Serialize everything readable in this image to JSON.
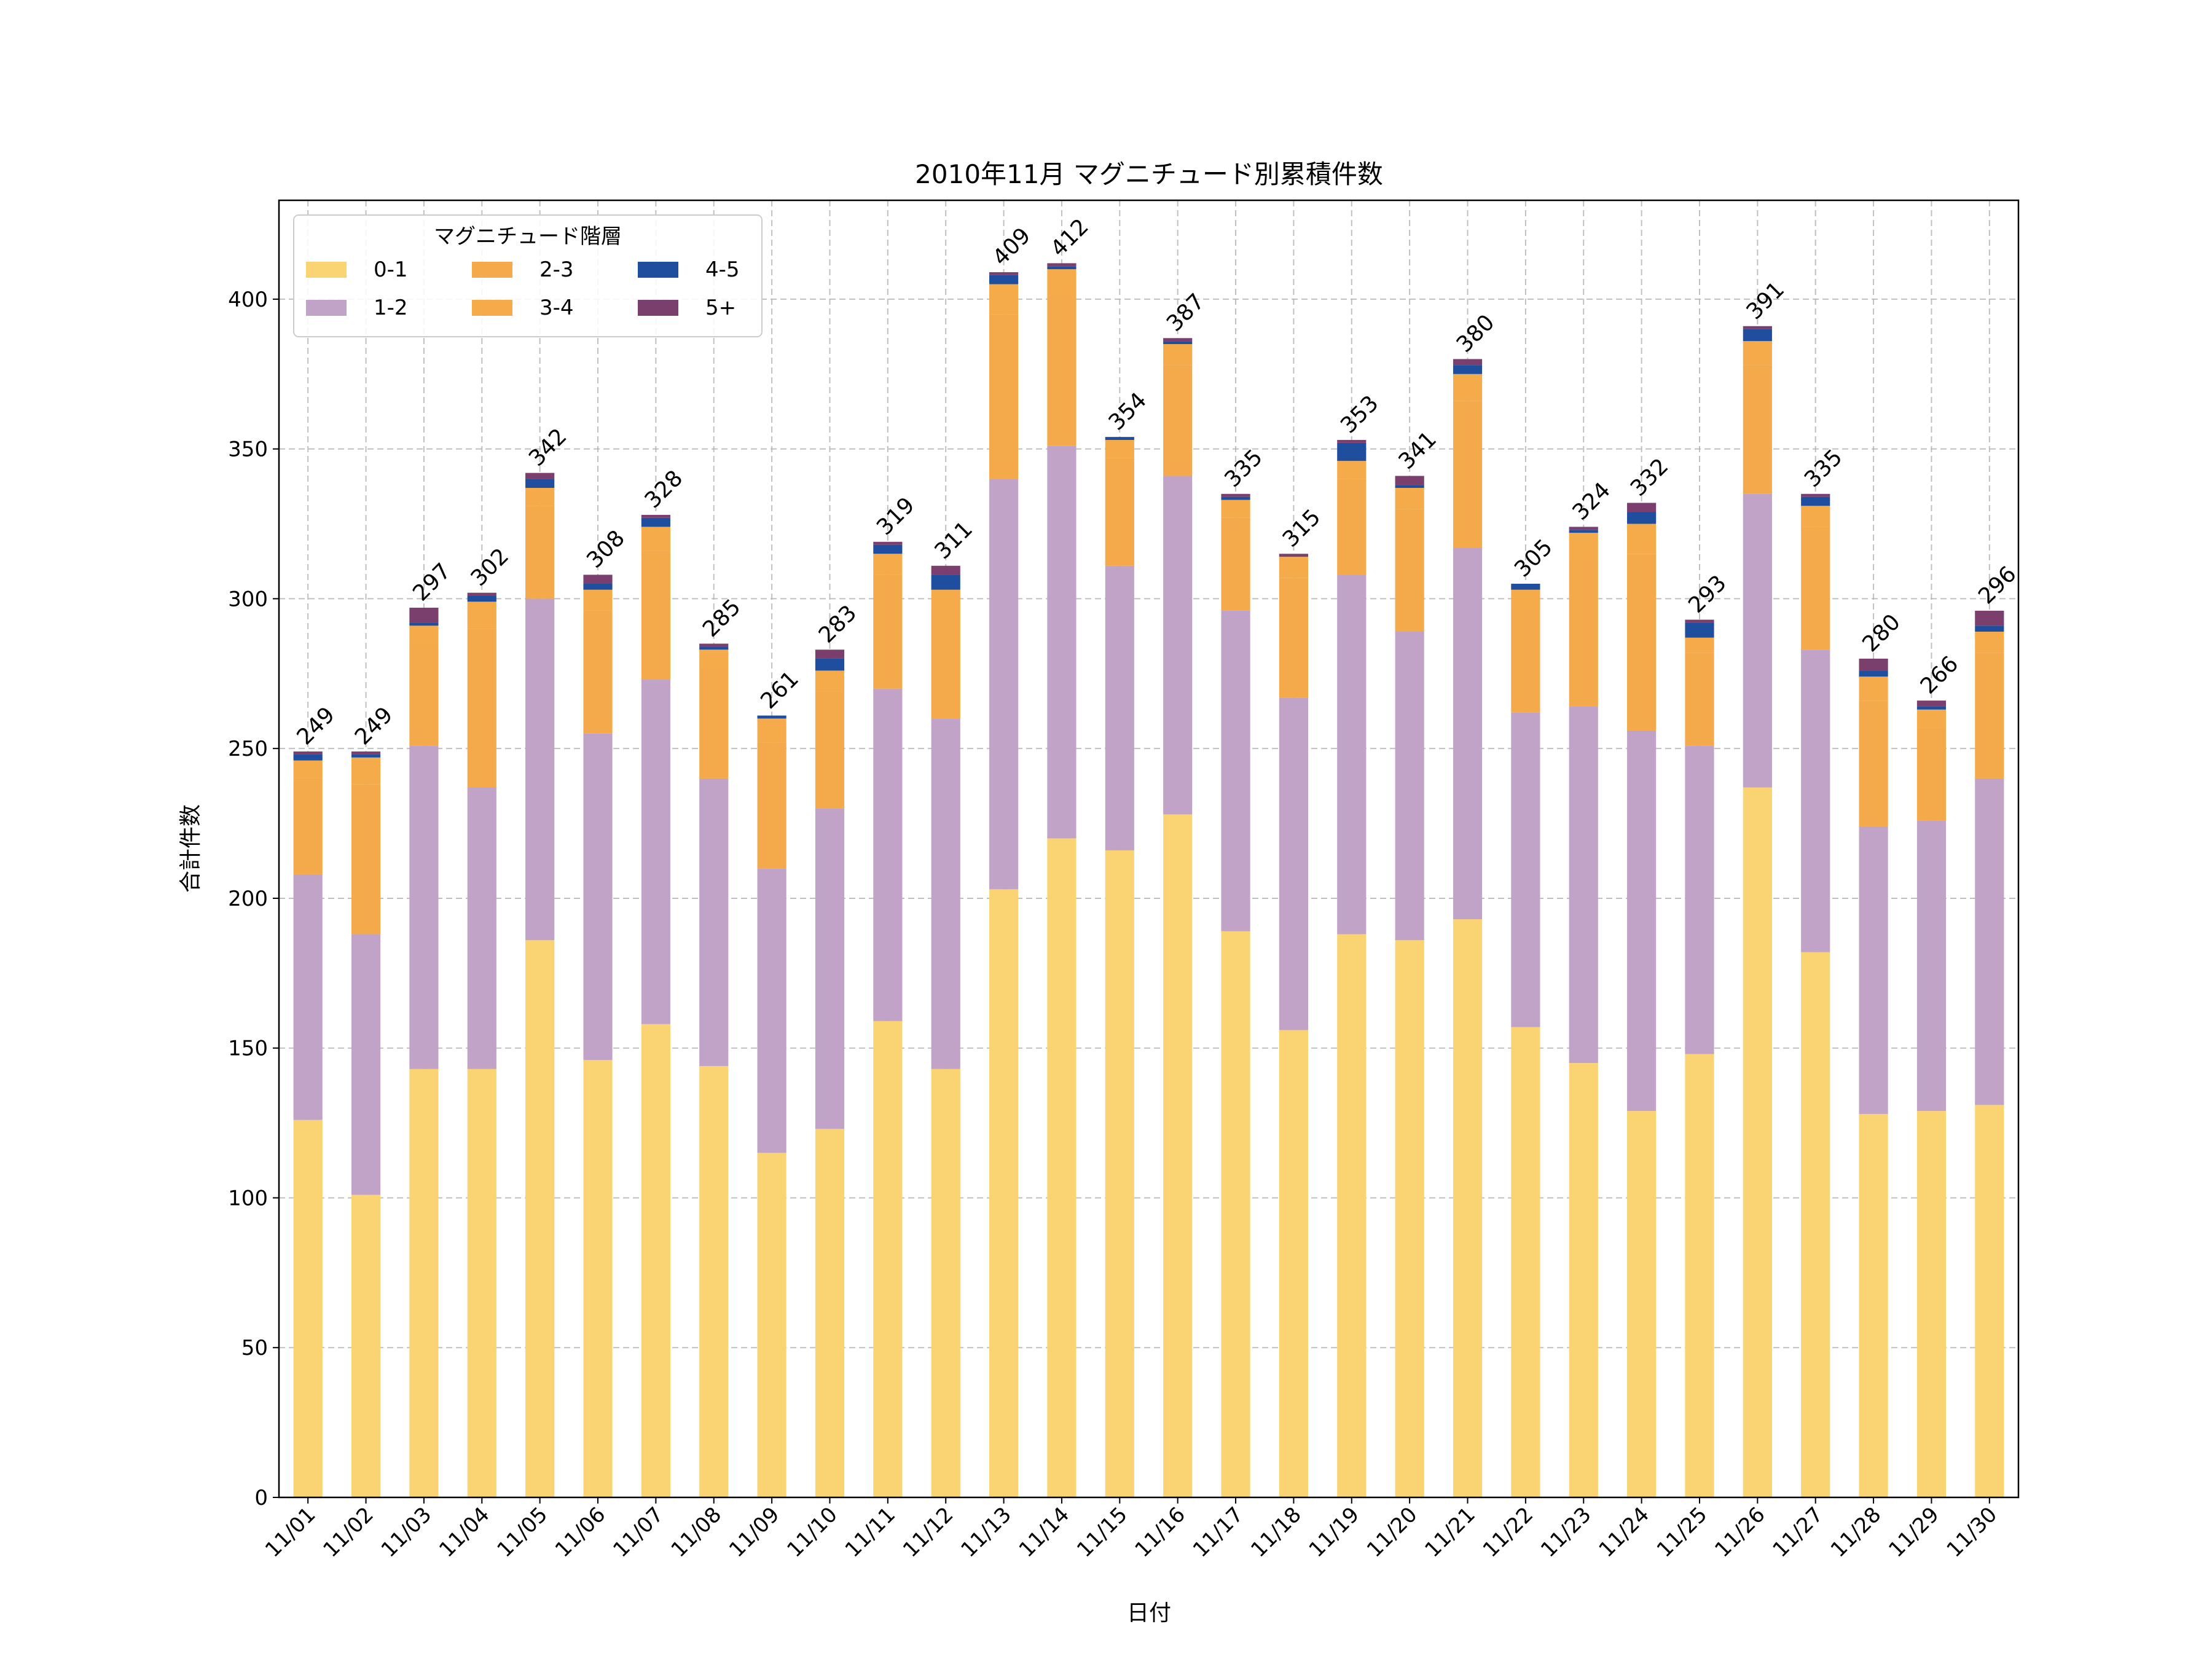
{
  "chart_data": {
    "type": "bar",
    "stacked": true,
    "title": "2010年11月 マグニチュード別累積件数",
    "xlabel": "日付",
    "ylabel": "合計件数",
    "ylim": [
      0,
      433
    ],
    "yticks": [
      0,
      50,
      100,
      150,
      200,
      250,
      300,
      350,
      400
    ],
    "grid": true,
    "legend": {
      "title": "マグニチュード階層",
      "placement": "top-left",
      "columns": 3
    },
    "categories": [
      "11/01",
      "11/02",
      "11/03",
      "11/04",
      "11/05",
      "11/06",
      "11/07",
      "11/08",
      "11/09",
      "11/10",
      "11/11",
      "11/12",
      "11/13",
      "11/14",
      "11/15",
      "11/16",
      "11/17",
      "11/18",
      "11/19",
      "11/20",
      "11/21",
      "11/22",
      "11/23",
      "11/24",
      "11/25",
      "11/26",
      "11/27",
      "11/28",
      "11/29",
      "11/30"
    ],
    "series": [
      {
        "name": "0-1",
        "color": "#fad473",
        "values": [
          126,
          101,
          143,
          143,
          186,
          146,
          158,
          144,
          115,
          123,
          159,
          143,
          203,
          220,
          216,
          228,
          189,
          156,
          188,
          186,
          193,
          157,
          145,
          129,
          148,
          237,
          182,
          128,
          129,
          131
        ]
      },
      {
        "name": "1-2",
        "color": "#c0a3c7",
        "values": [
          82,
          87,
          108,
          94,
          114,
          109,
          115,
          96,
          95,
          107,
          111,
          117,
          137,
          131,
          95,
          113,
          107,
          111,
          120,
          103,
          124,
          105,
          119,
          127,
          103,
          98,
          101,
          96,
          97,
          109
        ]
      },
      {
        "name": "2-3",
        "color": "#f4a94a",
        "values": [
          32,
          50,
          34,
          53,
          31,
          41,
          43,
          37,
          42,
          39,
          38,
          37,
          55,
          50,
          36,
          37,
          31,
          40,
          32,
          41,
          49,
          35,
          49,
          59,
          31,
          43,
          41,
          42,
          31,
          42
        ]
      },
      {
        "name": "3-4",
        "color": "#f5ab4a",
        "values": [
          6,
          9,
          6,
          9,
          6,
          7,
          8,
          6,
          8,
          7,
          7,
          6,
          10,
          9,
          6,
          7,
          6,
          7,
          6,
          7,
          9,
          6,
          9,
          10,
          5,
          8,
          7,
          8,
          6,
          7
        ]
      },
      {
        "name": "4-5",
        "color": "#1f4e9e",
        "values": [
          2,
          1,
          1,
          2,
          3,
          2,
          3,
          1,
          1,
          4,
          3,
          5,
          3,
          1,
          1,
          1,
          1,
          0,
          6,
          1,
          3,
          2,
          1,
          4,
          5,
          4,
          3,
          2,
          1,
          2
        ]
      },
      {
        "name": "5+",
        "color": "#7b3f6e",
        "values": [
          1,
          1,
          5,
          1,
          2,
          3,
          1,
          1,
          0,
          3,
          1,
          3,
          1,
          1,
          0,
          1,
          1,
          1,
          1,
          3,
          2,
          0,
          1,
          3,
          1,
          1,
          1,
          4,
          2,
          5
        ]
      }
    ],
    "totals": [
      "249",
      "249",
      "297",
      "302",
      "342",
      "308",
      "328",
      "285",
      "261",
      "283",
      "319",
      "311",
      "409",
      "412",
      "354",
      "387",
      "335",
      "315",
      "353",
      "341",
      "380",
      "305",
      "324",
      "332",
      "293",
      "391",
      "335",
      "280",
      "266",
      "296"
    ]
  }
}
